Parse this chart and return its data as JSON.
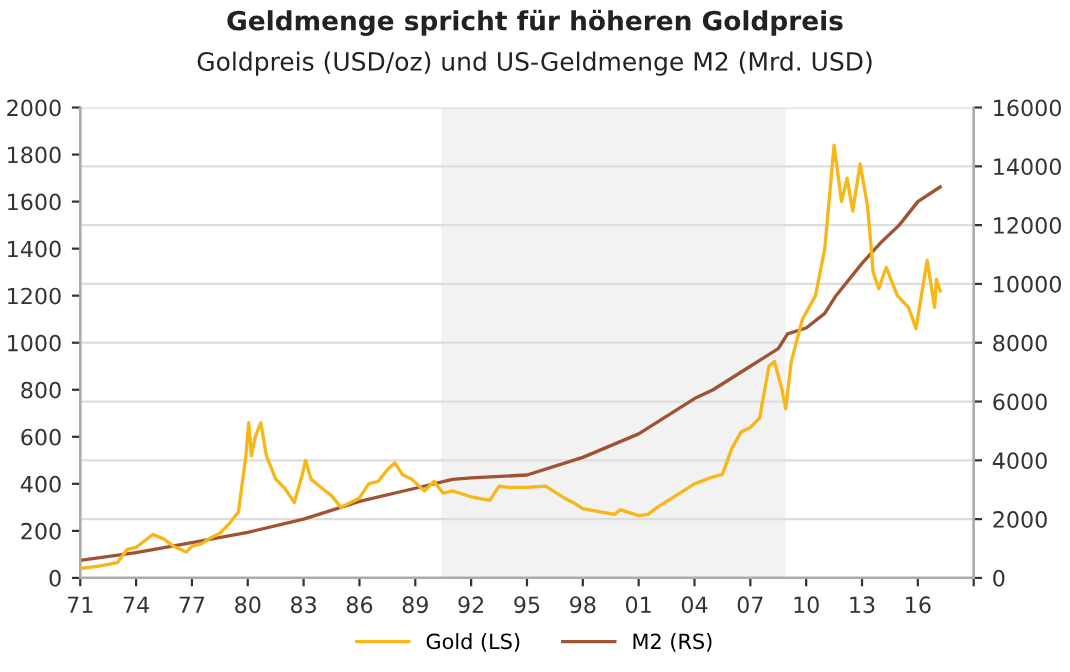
{
  "chart_data": {
    "type": "line",
    "title": "Geldmenge spricht für höheren Goldpreis",
    "subtitle": "Goldpreis (USD/oz) und US-Geldmenge M2 (Mrd. USD)",
    "xlim": [
      1971,
      2019
    ],
    "xticks": [
      {
        "value": 1971,
        "label": "71"
      },
      {
        "value": 1974,
        "label": "74"
      },
      {
        "value": 1977,
        "label": "77"
      },
      {
        "value": 1980,
        "label": "80"
      },
      {
        "value": 1983,
        "label": "83"
      },
      {
        "value": 1986,
        "label": "86"
      },
      {
        "value": 1989,
        "label": "89"
      },
      {
        "value": 1992,
        "label": "92"
      },
      {
        "value": 1995,
        "label": "95"
      },
      {
        "value": 1998,
        "label": "98"
      },
      {
        "value": 2001,
        "label": "01"
      },
      {
        "value": 2004,
        "label": "04"
      },
      {
        "value": 2007,
        "label": "07"
      },
      {
        "value": 2010,
        "label": "10"
      },
      {
        "value": 2013,
        "label": "13"
      },
      {
        "value": 2016,
        "label": "16"
      },
      {
        "value": 2019,
        "label": null
      }
    ],
    "ylim": [
      0,
      2000
    ],
    "yticks": [
      0,
      200,
      400,
      600,
      800,
      1000,
      1200,
      1400,
      1600,
      1800,
      2000
    ],
    "y2lim": [
      0,
      16000
    ],
    "y2ticks": [
      0,
      2000,
      4000,
      6000,
      8000,
      10000,
      12000,
      14000,
      16000
    ],
    "grid": "y",
    "legend": "bottom",
    "line_style": "solid",
    "bands": [
      {
        "axis": "x",
        "from": 1990.4,
        "to": 2008.9,
        "color": "#f2f2f2"
      }
    ],
    "series": [
      {
        "name": "Gold (LS)",
        "color": "#f7b718",
        "x": [
          1971.0,
          1972.0,
          1973.0,
          1973.5,
          1974.0,
          1974.5,
          1974.9,
          1975.5,
          1976.0,
          1976.7,
          1977.0,
          1977.5,
          1978.0,
          1978.5,
          1979.0,
          1979.5,
          1979.9,
          1980.05,
          1980.2,
          1980.4,
          1980.7,
          1981.0,
          1981.5,
          1982.0,
          1982.5,
          1982.9,
          1983.1,
          1983.4,
          1984.0,
          1984.5,
          1985.0,
          1985.5,
          1986.0,
          1986.5,
          1987.0,
          1987.5,
          1987.9,
          1988.3,
          1988.8,
          1989.5,
          1990.0,
          1990.5,
          1991.0,
          1992.0,
          1993.0,
          1993.5,
          1994.0,
          1995.0,
          1996.0,
          1997.0,
          1997.5,
          1998.0,
          1999.0,
          1999.7,
          2000.0,
          2001.0,
          2001.5,
          2002.0,
          2003.0,
          2004.0,
          2005.0,
          2005.5,
          2006.0,
          2006.5,
          2007.0,
          2007.5,
          2008.0,
          2008.3,
          2008.7,
          2008.9,
          2009.2,
          2009.8,
          2010.5,
          2011.0,
          2011.5,
          2011.9,
          2012.2,
          2012.5,
          2012.9,
          2013.3,
          2013.6,
          2013.9,
          2014.3,
          2014.9,
          2015.5,
          2015.9,
          2016.5,
          2016.9,
          2017.0,
          2017.2
        ],
        "values": [
          40,
          50,
          65,
          120,
          130,
          160,
          185,
          165,
          135,
          110,
          135,
          145,
          170,
          190,
          230,
          280,
          520,
          660,
          520,
          600,
          660,
          520,
          420,
          380,
          320,
          430,
          500,
          420,
          380,
          350,
          300,
          320,
          340,
          400,
          410,
          460,
          490,
          440,
          420,
          370,
          410,
          360,
          370,
          345,
          330,
          390,
          385,
          385,
          390,
          340,
          320,
          295,
          280,
          270,
          290,
          265,
          270,
          300,
          350,
          400,
          430,
          440,
          550,
          620,
          640,
          680,
          900,
          920,
          800,
          720,
          920,
          1100,
          1200,
          1400,
          1840,
          1600,
          1700,
          1560,
          1760,
          1580,
          1300,
          1230,
          1320,
          1200,
          1150,
          1060,
          1350,
          1150,
          1270,
          1220
        ]
      },
      {
        "name": "M2 (RS)",
        "color": "#9e5332",
        "axis": "y2",
        "x": [
          1971,
          1974,
          1977,
          1980,
          1983,
          1986,
          1989,
          1991,
          1992,
          1995,
          1998,
          2001,
          2003,
          2004,
          2005,
          2007,
          2008.5,
          2009,
          2010,
          2011,
          2011.6,
          2013,
          2014,
          2015,
          2016,
          2017.2
        ],
        "values": [
          600,
          860,
          1200,
          1550,
          2000,
          2600,
          3050,
          3350,
          3400,
          3500,
          4100,
          4900,
          5700,
          6100,
          6400,
          7200,
          7800,
          8300,
          8500,
          9000,
          9600,
          10700,
          11400,
          12000,
          12800,
          13300
        ]
      }
    ]
  }
}
